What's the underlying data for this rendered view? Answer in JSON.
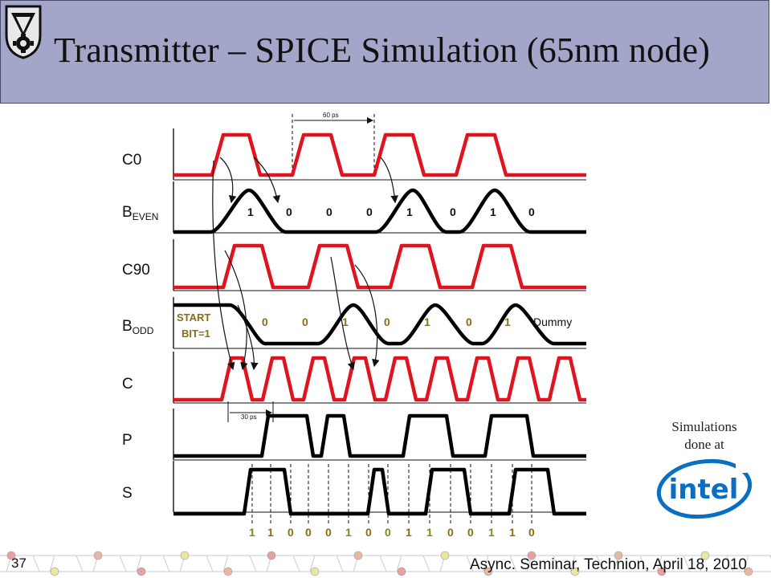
{
  "slide": {
    "title": "Transmitter – SPICE Simulation (65nm node)",
    "page_number": "37",
    "footer": "Async. Seminar, Technion, April 18, 2010"
  },
  "side_note": {
    "line1": "Simulations",
    "line2": "done at",
    "logo_text": "intel"
  },
  "diagram": {
    "signals": [
      {
        "label": "C0",
        "sub": ""
      },
      {
        "label": "B",
        "sub": "EVEN"
      },
      {
        "label": "C90",
        "sub": ""
      },
      {
        "label": "B",
        "sub": "ODD"
      },
      {
        "label": "C",
        "sub": ""
      },
      {
        "label": "P",
        "sub": ""
      },
      {
        "label": "S",
        "sub": ""
      }
    ],
    "b_even_bits": [
      "1",
      "0",
      "0",
      "0",
      "1",
      "0",
      "1",
      "0"
    ],
    "b_odd_start": [
      "START",
      "BIT=1"
    ],
    "b_odd_bits": [
      "0",
      "0",
      "1",
      "0",
      "1",
      "0",
      "1"
    ],
    "b_odd_trailer": "Dummy",
    "period_label": "60 ps",
    "half_period_label": "30 ps",
    "output_bits": [
      "1",
      "1",
      "0",
      "0",
      "0",
      "1",
      "0",
      "0",
      "1",
      "1",
      "0",
      "0",
      "1",
      "1",
      "0"
    ],
    "colors": {
      "clock": "#e0141e",
      "data": "#000000",
      "bit_text": "#8a6d12",
      "output_bit_green": "#7a8a1e"
    }
  },
  "colors": {
    "header": "#a4a6c9",
    "intel_blue": "#0a6fc2"
  }
}
